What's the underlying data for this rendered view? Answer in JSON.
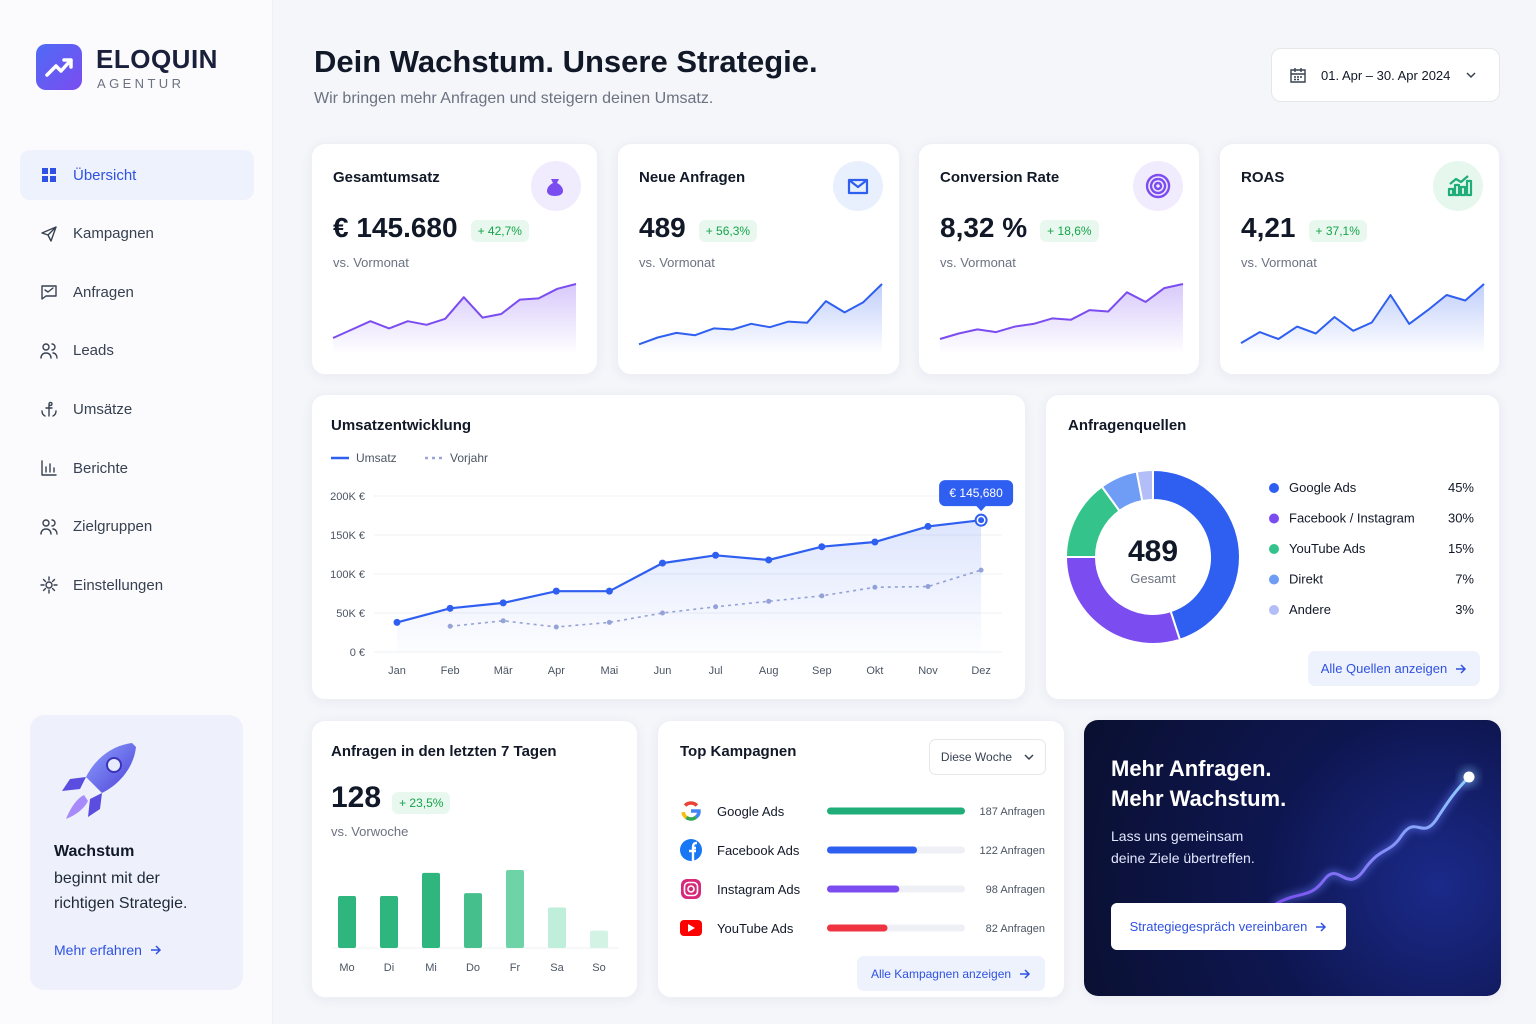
{
  "sidebar": {
    "brand": "ELOQUIN",
    "tagline": "AGENTUR",
    "nav": [
      "Übersicht",
      "Kampagnen",
      "Anfragen",
      "Leads",
      "Umsätze",
      "Berichte",
      "Zielgruppen",
      "Einstellungen"
    ],
    "active_index": 0,
    "promo": {
      "title": "Wachstum",
      "text": "beginnt mit der richtigen Strategie.",
      "link": "Mehr erfahren"
    }
  },
  "header": {
    "title": "Dein Wachstum. Unsere Strategie.",
    "subtitle": "Wir bringen mehr Anfragen und steigern deinen Umsatz.",
    "date_range": "01. Apr – 30. Apr 2024"
  },
  "kpis": [
    {
      "title": "Gesamtumsatz",
      "value": "€ 145.680",
      "change": "+ 42,7%",
      "note": "vs. Vormonat",
      "sparkline": {
        "type": "area",
        "color": "#7b4cf0",
        "values": [
          10,
          17,
          24,
          18,
          24,
          21,
          26,
          44,
          27,
          30,
          42,
          43,
          51,
          55
        ]
      }
    },
    {
      "title": "Neue Anfragen",
      "value": "489",
      "change": "+ 56,3%",
      "note": "vs. Vormonat",
      "sparkline": {
        "type": "area",
        "color": "#2f5ff0",
        "values": [
          5,
          11,
          15,
          13,
          19,
          18,
          23,
          20,
          25,
          24,
          43,
          33,
          42,
          58
        ]
      }
    },
    {
      "title": "Conversion Rate",
      "value": "8,32 %",
      "change": "+ 18,6%",
      "note": "vs. Vormonat",
      "sparkline": {
        "type": "area",
        "color": "#7b4cf0",
        "values": [
          8,
          12,
          15,
          13,
          17,
          19,
          23,
          22,
          29,
          28,
          42,
          35,
          45,
          48
        ]
      }
    },
    {
      "title": "ROAS",
      "value": "4,21",
      "change": "+ 37,1%",
      "note": "vs. Vormonat",
      "sparkline": {
        "type": "area",
        "color": "#2f5ff0",
        "values": [
          5,
          13,
          8,
          17,
          12,
          24,
          14,
          20,
          40,
          19,
          29,
          40,
          36,
          48
        ]
      }
    }
  ],
  "revenue_chart": {
    "type": "line",
    "title": "Umsatzentwicklung",
    "categories": [
      "Jan",
      "Feb",
      "Mär",
      "Apr",
      "Mai",
      "Jun",
      "Jul",
      "Aug",
      "Sep",
      "Okt",
      "Nov",
      "Dez"
    ],
    "series": [
      {
        "name": "Umsatz",
        "color": "#2f5ff0",
        "values": [
          38000,
          56000,
          63000,
          78000,
          78000,
          114000,
          124000,
          118000,
          135000,
          141000,
          161000,
          169000
        ]
      },
      {
        "name": "Vorjahr",
        "color": "#9aa6d6",
        "dashed": true,
        "values": [
          null,
          33000,
          40000,
          32000,
          38000,
          50000,
          58000,
          65000,
          72000,
          83000,
          84000,
          105000
        ]
      }
    ],
    "ylim": [
      0,
      200000
    ],
    "yticks": [
      {
        "value": 0,
        "label": "0 €"
      },
      {
        "value": 50000,
        "label": "50K €"
      },
      {
        "value": 100000,
        "label": "100K €"
      },
      {
        "value": 150000,
        "label": "150K €"
      },
      {
        "value": 200000,
        "label": "200K €"
      }
    ],
    "grid": true,
    "callout": "€ 145,680"
  },
  "sources": {
    "type": "donut",
    "title": "Anfragenquellen",
    "center_value": "489",
    "center_label": "Gesamt",
    "categories": [
      "Google Ads",
      "Facebook / Instagram",
      "YouTube Ads",
      "Direkt",
      "Andere"
    ],
    "values": [
      45,
      30,
      15,
      7,
      3
    ],
    "value_labels": [
      "45%",
      "30%",
      "15%",
      "7%",
      "3%"
    ],
    "colors": [
      "#2f5ff0",
      "#7b4cf0",
      "#34c48b",
      "#6f9cf5",
      "#b3bdf7"
    ],
    "button": "Alle Quellen anzeigen"
  },
  "weekly": {
    "type": "bar",
    "title": "Anfragen in den letzten 7 Tagen",
    "total": "128",
    "change": "+ 23,5%",
    "note": "vs. Vorwoche",
    "categories": [
      "Mo",
      "Di",
      "Mi",
      "Do",
      "Fr",
      "Sa",
      "So"
    ],
    "values": [
      18,
      18,
      26,
      19,
      27,
      14,
      6
    ],
    "colors": [
      "#2fb57e",
      "#2fb57e",
      "#2fb57e",
      "#45c08c",
      "#6fd3a8",
      "#bfeeda",
      "#d3f3e5"
    ]
  },
  "campaigns": {
    "type": "bar",
    "orientation": "horizontal",
    "title": "Top Kampagnen",
    "filter": "Diese Woche",
    "categories": [
      "Google Ads",
      "Facebook Ads",
      "Instagram Ads",
      "YouTube Ads"
    ],
    "values": [
      187,
      122,
      98,
      82
    ],
    "value_labels": [
      "187 Anfragen",
      "122 Anfragen",
      "98 Anfragen",
      "82 Anfragen"
    ],
    "colors": [
      "#1fae7a",
      "#2f5ff0",
      "#7b4cf0",
      "#ef3340"
    ],
    "button": "Alle Kampagnen anzeigen"
  },
  "cta": {
    "title_lines": [
      "Mehr Anfragen.",
      "Mehr Wachstum."
    ],
    "text_lines": [
      "Lass uns gemeinsam",
      "deine Ziele übertreffen."
    ],
    "button": "Strategiegespräch vereinbaren"
  }
}
